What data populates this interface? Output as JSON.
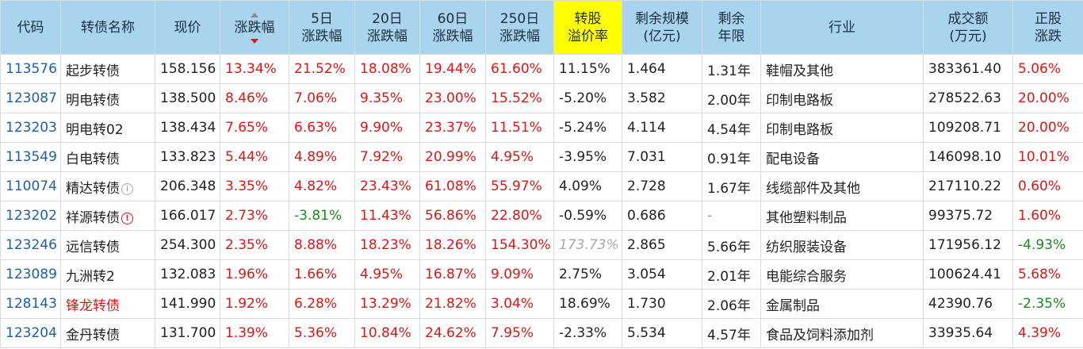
{
  "headers": [
    {
      "l1": "代码",
      "l2": ""
    },
    {
      "l1": "转债名称",
      "l2": ""
    },
    {
      "l1": "现价",
      "l2": ""
    },
    {
      "l1": "涨跌幅",
      "l2": ""
    },
    {
      "l1": "5日",
      "l2": "涨跌幅"
    },
    {
      "l1": "20日",
      "l2": "涨跌幅"
    },
    {
      "l1": "60日",
      "l2": "涨跌幅"
    },
    {
      "l1": "250日",
      "l2": "涨跌幅"
    },
    {
      "l1": "转股",
      "l2": "溢价率"
    },
    {
      "l1": "剩余规模",
      "l2": "(亿元)"
    },
    {
      "l1": "剩余",
      "l2": "年限"
    },
    {
      "l1": "行业",
      "l2": ""
    },
    {
      "l1": "成交额",
      "l2": "(万元)"
    },
    {
      "l1": "正股",
      "l2": "涨跌"
    }
  ],
  "rows": [
    {
      "code": "113576",
      "name": "起步转债",
      "price": "158.156",
      "chg": "13.34%",
      "chg5": "21.52%",
      "chg20": "18.08%",
      "chg60": "19.44%",
      "chg250": "61.60%",
      "premium": "11.15%",
      "scale": "1.464",
      "years": "1.31年",
      "industry": "鞋帽及其他",
      "volume": "383361.40",
      "stock_chg": "5.06%"
    },
    {
      "code": "123087",
      "name": "明电转债",
      "price": "138.500",
      "chg": "8.46%",
      "chg5": "7.06%",
      "chg20": "9.35%",
      "chg60": "23.00%",
      "chg250": "15.52%",
      "premium": "-5.20%",
      "scale": "3.582",
      "years": "2.00年",
      "industry": "印制电路板",
      "volume": "278522.63",
      "stock_chg": "20.00%"
    },
    {
      "code": "123203",
      "name": "明电转02",
      "price": "138.434",
      "chg": "7.65%",
      "chg5": "6.63%",
      "chg20": "9.90%",
      "chg60": "23.37%",
      "chg250": "11.51%",
      "premium": "-5.24%",
      "scale": "4.114",
      "years": "4.54年",
      "industry": "印制电路板",
      "volume": "109208.71",
      "stock_chg": "20.00%"
    },
    {
      "code": "113549",
      "name": "白电转债",
      "price": "133.823",
      "chg": "5.44%",
      "chg5": "4.89%",
      "chg20": "7.92%",
      "chg60": "20.99%",
      "chg250": "4.95%",
      "premium": "-3.95%",
      "scale": "7.031",
      "years": "0.91年",
      "industry": "配电设备",
      "volume": "146098.10",
      "stock_chg": "10.01%"
    },
    {
      "code": "110074",
      "name": "精达转债",
      "badge": "i",
      "price": "206.348",
      "chg": "3.35%",
      "chg5": "4.82%",
      "chg20": "23.43%",
      "chg60": "61.08%",
      "chg250": "55.97%",
      "premium": "4.09%",
      "scale": "2.728",
      "years": "1.67年",
      "industry": "线缆部件及其他",
      "volume": "217110.22",
      "stock_chg": "0.60%"
    },
    {
      "code": "123202",
      "name": "祥源转债",
      "badge": "!",
      "price": "166.017",
      "chg": "2.73%",
      "chg5": "-3.81%",
      "chg20": "11.43%",
      "chg60": "56.86%",
      "chg250": "22.80%",
      "premium": "-0.59%",
      "scale": "0.686",
      "years": "-",
      "industry": "其他塑料制品",
      "volume": "99375.72",
      "stock_chg": "1.60%"
    },
    {
      "code": "123246",
      "name": "远信转债",
      "price": "254.300",
      "chg": "2.35%",
      "chg5": "8.88%",
      "chg20": "18.23%",
      "chg60": "18.26%",
      "chg250": "154.30%",
      "premium": "173.73%",
      "scale": "2.865",
      "years": "5.66年",
      "industry": "纺织服装设备",
      "volume": "171956.12",
      "stock_chg": "-4.93%"
    },
    {
      "code": "123089",
      "name": "九洲转2",
      "price": "132.083",
      "chg": "1.96%",
      "chg5": "1.66%",
      "chg20": "4.95%",
      "chg60": "16.87%",
      "chg250": "9.09%",
      "premium": "2.75%",
      "scale": "3.054",
      "years": "2.01年",
      "industry": "电能综合服务",
      "volume": "100624.41",
      "stock_chg": "5.68%"
    },
    {
      "code": "128143",
      "name": "锋龙转债",
      "price": "141.990",
      "chg": "1.92%",
      "chg5": "6.28%",
      "chg20": "13.29%",
      "chg60": "21.82%",
      "chg250": "3.04%",
      "premium": "18.69%",
      "scale": "1.730",
      "years": "2.06年",
      "industry": "金属制品",
      "volume": "42390.76",
      "stock_chg": "-2.35%"
    },
    {
      "code": "123204",
      "name": "金丹转债",
      "price": "131.700",
      "chg": "1.39%",
      "chg5": "5.36%",
      "chg20": "10.84%",
      "chg60": "24.62%",
      "chg250": "7.95%",
      "premium": "-2.33%",
      "scale": "5.534",
      "years": "4.57年",
      "industry": "食品及饲料添加剂",
      "volume": "33935.64",
      "stock_chg": "4.39%"
    }
  ],
  "styles": {
    "red_name_rows": [
      8
    ],
    "muted_premium_rows": [
      6
    ],
    "dash_years_rows": [
      5
    ]
  },
  "colors": {
    "header_bg": "#a8d4ee",
    "highlight_header_bg": "#ffff00",
    "up": "#e01515",
    "down": "#1c8a1c",
    "code": "#1f5fa8"
  }
}
